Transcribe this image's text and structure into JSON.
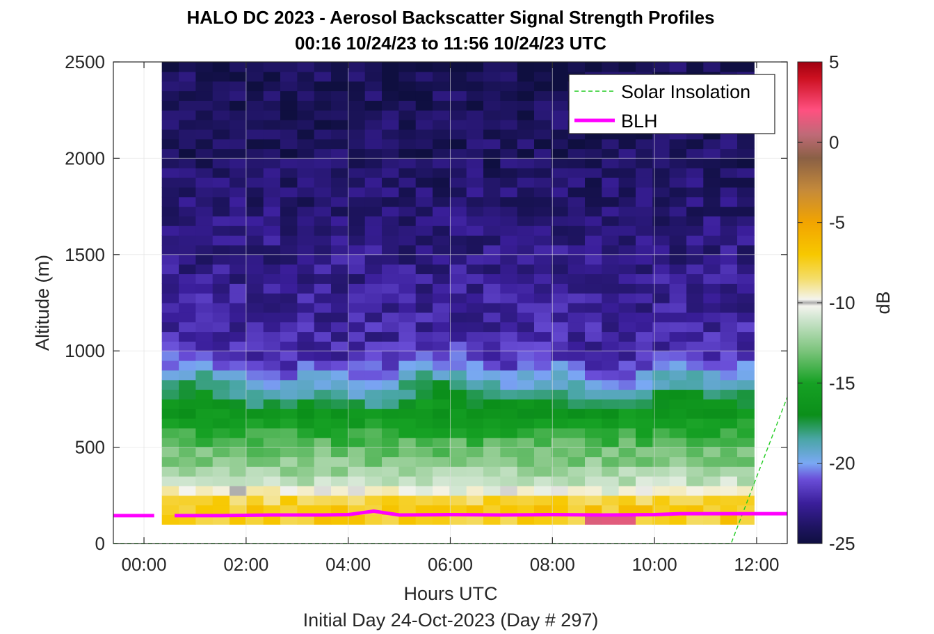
{
  "chart_data": {
    "type": "heatmap",
    "title": "HALO DC 2023 - Aerosol Backscatter Signal Strength Profiles",
    "subtitle": "00:16 10/24/23 to 11:56 10/24/23  UTC",
    "xlabel": "Hours UTC",
    "xlabel2": "Initial Day 24-Oct-2023 (Day # 297)",
    "ylabel": "Altitude (m)",
    "colorbar_label": "dB",
    "xlim": [
      -0.6,
      12.6
    ],
    "ylim": [
      0,
      2500
    ],
    "clim": [
      -25,
      5
    ],
    "x_ticks": [
      0,
      2,
      4,
      6,
      8,
      10,
      12
    ],
    "x_tick_labels": [
      "00:00",
      "02:00",
      "04:00",
      "06:00",
      "08:00",
      "10:00",
      "12:00"
    ],
    "y_ticks": [
      0,
      500,
      1000,
      1500,
      2000,
      2500
    ],
    "y_tick_labels": [
      "0",
      "500",
      "1000",
      "1500",
      "2000",
      "2500"
    ],
    "c_ticks": [
      5,
      0,
      -5,
      -10,
      -15,
      -20,
      -25
    ],
    "c_tick_labels": [
      "5",
      "0",
      "-5",
      "-10",
      "-15",
      "-20",
      "-25"
    ],
    "grid": true,
    "legend_position": "top-right",
    "heatmap": {
      "x_start": 0.35,
      "x_end": 11.95,
      "n_cols": 35,
      "alt_bottom": 100,
      "alt_top": 2500,
      "n_rows": 48,
      "profiles_by_altitude": [
        {
          "alt": 100,
          "db": -7.5
        },
        {
          "alt": 200,
          "db": -7.0
        },
        {
          "alt": 250,
          "db": -9.0
        },
        {
          "alt": 300,
          "db": -11.0
        },
        {
          "alt": 400,
          "db": -12.5
        },
        {
          "alt": 500,
          "db": -13.5
        },
        {
          "alt": 600,
          "db": -15.0
        },
        {
          "alt": 700,
          "db": -16.5
        },
        {
          "alt": 800,
          "db": -18.5
        },
        {
          "alt": 900,
          "db": -20.5
        },
        {
          "alt": 1000,
          "db": -22.0
        },
        {
          "alt": 1200,
          "db": -22.5
        },
        {
          "alt": 1500,
          "db": -23.0
        },
        {
          "alt": 2000,
          "db": -24.0
        },
        {
          "alt": 2500,
          "db": -24.3
        }
      ],
      "hot_spot": {
        "x_range": [
          8.4,
          9.3
        ],
        "alt_range": [
          100,
          150
        ],
        "db": 2
      }
    },
    "series": [
      {
        "name": "Solar Insolation",
        "style": "dashed",
        "color": "#22cc22",
        "x": [
          -0.6,
          11.5,
          12.6
        ],
        "y": [
          0,
          0,
          760
        ]
      },
      {
        "name": "BLH",
        "style": "solid",
        "color": "#ff00ff",
        "segments": [
          {
            "x": [
              -0.6,
              0.2
            ],
            "y": [
              145,
              145
            ]
          },
          {
            "x": [
              0.6,
              1.5,
              2.5,
              3.5,
              4.0,
              4.5,
              5.0,
              6.0,
              7.0,
              8.0,
              9.0,
              10.0,
              10.5,
              11.0,
              12.0,
              12.6
            ],
            "y": [
              145,
              145,
              148,
              148,
              150,
              168,
              148,
              150,
              148,
              150,
              148,
              150,
              155,
              155,
              155,
              155
            ]
          }
        ]
      }
    ]
  }
}
